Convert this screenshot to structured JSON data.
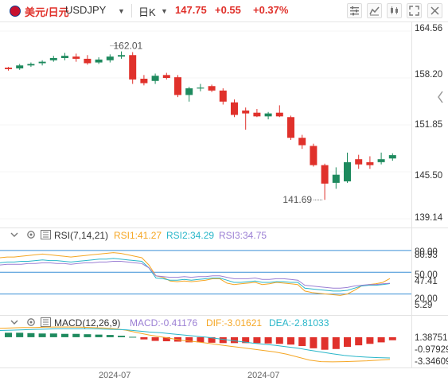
{
  "header": {
    "name": "美元/日元",
    "symbol": "USDJPY",
    "period": "日K",
    "price": "147.75",
    "change": "+0.55",
    "change_pct": "+0.37%",
    "icons": [
      "settings-icon",
      "indicator-icon",
      "chart-type-icon",
      "fullscreen-icon",
      "close-icon"
    ]
  },
  "colors": {
    "up": "#e0312b",
    "down": "#1e8a5e",
    "rsi1": "#f5a623",
    "rsi2": "#29b6c9",
    "rsi3": "#9b7fd4",
    "macd": "#9b7fd4",
    "dif": "#f5a623",
    "dea": "#29b6c9"
  },
  "main_chart": {
    "y_labels": [
      "164.56",
      "158.20",
      "151.85",
      "145.50",
      "139.14"
    ],
    "high_label": "162.01",
    "low_label": "141.69"
  },
  "rsi": {
    "title": "RSI(7,14,21)",
    "rsi1": "RSI1:41.27",
    "rsi2": "RSI2:34.29",
    "rsi3": "RSI3:34.75",
    "y_labels": [
      "80.00",
      "80.93",
      "50.00",
      "47.41",
      "20.00",
      "5.29"
    ]
  },
  "macd": {
    "title": "MACD(12,26,9)",
    "macd": "MACD:-0.41176",
    "dif": "DIF:-3.01621",
    "dea": "DEA:-2.81033",
    "y_labels": [
      "1.38751",
      "-0.97929",
      "-3.34609"
    ]
  },
  "x_axis": {
    "labels": [
      "2024-07",
      "2024-07"
    ]
  },
  "chart_data": [
    {
      "type": "candlestick",
      "title": "USDJPY 日K",
      "ylim": [
        139.14,
        164.56
      ],
      "annotations": [
        "162.01",
        "141.69"
      ],
      "candles": [
        {
          "o": 159.6,
          "h": 159.7,
          "l": 159.2,
          "c": 159.4
        },
        {
          "o": 159.5,
          "h": 160.1,
          "l": 159.3,
          "c": 159.9
        },
        {
          "o": 159.9,
          "h": 160.3,
          "l": 159.7,
          "c": 160.1
        },
        {
          "o": 160.2,
          "h": 160.6,
          "l": 159.9,
          "c": 160.4
        },
        {
          "o": 160.6,
          "h": 161.2,
          "l": 160.4,
          "c": 160.9
        },
        {
          "o": 160.9,
          "h": 161.6,
          "l": 160.6,
          "c": 161.2
        },
        {
          "o": 161.1,
          "h": 161.5,
          "l": 160.4,
          "c": 160.8
        },
        {
          "o": 160.8,
          "h": 161.3,
          "l": 160.0,
          "c": 160.2
        },
        {
          "o": 160.3,
          "h": 161.0,
          "l": 160.1,
          "c": 160.7
        },
        {
          "o": 160.6,
          "h": 161.4,
          "l": 160.3,
          "c": 161.1
        },
        {
          "o": 161.1,
          "h": 161.8,
          "l": 160.8,
          "c": 161.3
        },
        {
          "o": 161.3,
          "h": 161.7,
          "l": 157.4,
          "c": 158.0
        },
        {
          "o": 158.1,
          "h": 158.6,
          "l": 157.2,
          "c": 157.5
        },
        {
          "o": 157.8,
          "h": 158.8,
          "l": 157.4,
          "c": 158.5
        },
        {
          "o": 158.6,
          "h": 158.9,
          "l": 158.0,
          "c": 158.2
        },
        {
          "o": 158.3,
          "h": 158.6,
          "l": 155.6,
          "c": 155.9
        },
        {
          "o": 155.9,
          "h": 157.0,
          "l": 155.0,
          "c": 156.8
        },
        {
          "o": 156.9,
          "h": 157.4,
          "l": 156.4,
          "c": 156.9
        },
        {
          "o": 157.1,
          "h": 157.3,
          "l": 156.3,
          "c": 156.5
        },
        {
          "o": 156.5,
          "h": 156.8,
          "l": 154.6,
          "c": 155.0
        },
        {
          "o": 154.9,
          "h": 155.3,
          "l": 152.9,
          "c": 153.2
        },
        {
          "o": 153.8,
          "h": 154.2,
          "l": 151.2,
          "c": 153.4
        },
        {
          "o": 153.5,
          "h": 154.0,
          "l": 152.9,
          "c": 153.0
        },
        {
          "o": 153.0,
          "h": 153.6,
          "l": 152.6,
          "c": 153.4
        },
        {
          "o": 153.5,
          "h": 154.5,
          "l": 152.9,
          "c": 153.0
        },
        {
          "o": 152.9,
          "h": 153.1,
          "l": 149.8,
          "c": 150.1
        },
        {
          "o": 150.1,
          "h": 150.5,
          "l": 148.6,
          "c": 149.1
        },
        {
          "o": 149.0,
          "h": 149.3,
          "l": 146.2,
          "c": 146.4
        },
        {
          "o": 146.4,
          "h": 146.6,
          "l": 141.7,
          "c": 143.9
        },
        {
          "o": 144.0,
          "h": 146.1,
          "l": 143.2,
          "c": 145.1
        },
        {
          "o": 144.2,
          "h": 148.1,
          "l": 144.0,
          "c": 146.8
        },
        {
          "o": 147.2,
          "h": 147.8,
          "l": 145.9,
          "c": 146.5
        },
        {
          "o": 146.8,
          "h": 147.6,
          "l": 145.9,
          "c": 146.4
        },
        {
          "o": 146.8,
          "h": 148.1,
          "l": 146.5,
          "c": 147.2
        },
        {
          "o": 147.3,
          "h": 148.0,
          "l": 147.0,
          "c": 147.75
        }
      ]
    },
    {
      "type": "line",
      "title": "RSI(7,14,21)",
      "ylim": [
        5.29,
        80.93
      ],
      "reference_lines": [
        80,
        50,
        20
      ],
      "series": [
        {
          "name": "RSI1",
          "values": [
            70,
            71,
            71,
            72,
            73,
            74,
            75,
            74,
            73,
            72,
            71,
            72,
            73,
            74,
            75,
            76,
            77,
            76,
            74,
            72,
            70,
            60,
            45,
            43,
            38,
            37,
            38,
            37,
            38,
            39,
            41,
            41,
            35,
            33,
            34,
            35,
            36,
            33,
            34,
            36,
            35,
            34,
            33,
            24,
            22,
            21,
            20,
            19,
            18,
            20,
            25,
            31,
            33,
            34,
            36,
            41.27
          ]
        },
        {
          "name": "RSI2",
          "values": [
            63,
            64,
            64,
            65,
            65,
            66,
            67,
            66,
            66,
            65,
            64,
            65,
            66,
            67,
            68,
            68,
            69,
            68,
            67,
            66,
            65,
            56,
            42,
            41,
            39,
            39,
            40,
            39,
            40,
            41,
            42,
            42,
            39,
            36,
            36,
            37,
            38,
            36,
            36,
            37,
            37,
            36,
            36,
            28,
            27,
            26,
            25,
            24,
            24,
            25,
            28,
            31,
            32,
            32,
            33,
            34.29
          ]
        },
        {
          "name": "RSI3",
          "values": [
            60,
            61,
            61,
            61,
            62,
            62,
            63,
            63,
            62,
            62,
            61,
            62,
            63,
            63,
            64,
            64,
            65,
            65,
            64,
            63,
            62,
            56,
            45,
            44,
            43,
            43,
            44,
            43,
            44,
            44,
            45,
            45,
            43,
            41,
            41,
            41,
            42,
            40,
            40,
            41,
            41,
            40,
            39,
            32,
            31,
            30,
            29,
            28,
            28,
            29,
            31,
            32,
            33,
            33,
            34,
            34.75
          ]
        }
      ]
    },
    {
      "type": "bar",
      "title": "MACD(12,26,9)",
      "ylim": [
        -3.34609,
        1.38751
      ],
      "series": [
        {
          "name": "MACD",
          "values": [
            0.6,
            0.6,
            0.55,
            0.5,
            0.5,
            0.45,
            0.45,
            0.4,
            0.35,
            0.3,
            0.2,
            0.05,
            -0.3,
            -0.5,
            -0.55,
            -0.6,
            -0.7,
            -0.7,
            -0.75,
            -0.8,
            -0.8,
            -0.8,
            -0.8,
            -0.85,
            -0.9,
            -1.0,
            -1.2,
            -1.5,
            -1.7,
            -1.6,
            -1.3,
            -1.1,
            -0.9,
            -0.7,
            -0.41176
          ]
        },
        {
          "name": "DIF",
          "values": [
            1.2,
            1.25,
            1.3,
            1.3,
            1.35,
            1.38,
            1.38,
            1.35,
            1.3,
            1.25,
            1.15,
            0.95,
            0.6,
            0.3,
            0.05,
            -0.2,
            -0.45,
            -0.6,
            -0.8,
            -1.0,
            -1.2,
            -1.4,
            -1.6,
            -1.8,
            -2.0,
            -2.3,
            -2.7,
            -3.1,
            -3.3,
            -3.34,
            -3.3,
            -3.25,
            -3.2,
            -3.1,
            -3.01621
          ]
        },
        {
          "name": "DEA",
          "values": [
            0.9,
            0.95,
            1.0,
            1.05,
            1.1,
            1.15,
            1.15,
            1.15,
            1.15,
            1.1,
            1.05,
            1.0,
            0.85,
            0.7,
            0.6,
            0.45,
            0.3,
            0.15,
            0.0,
            -0.2,
            -0.4,
            -0.6,
            -0.8,
            -0.95,
            -1.1,
            -1.3,
            -1.5,
            -1.75,
            -2.0,
            -2.25,
            -2.45,
            -2.6,
            -2.7,
            -2.77,
            -2.81033
          ]
        }
      ]
    }
  ]
}
